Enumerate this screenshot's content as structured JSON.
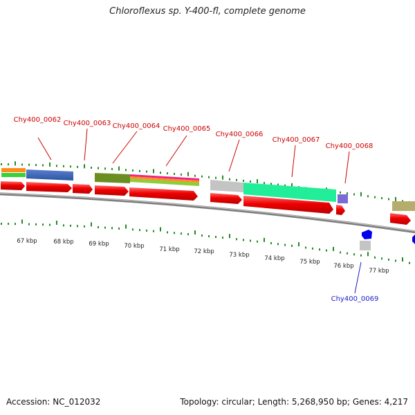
{
  "title": "Chloroflexus sp. Y-400-fl, complete genome",
  "accession": "Accession: NC_012032",
  "summary": "Topology: circular; Length: 5,268,950 bp; Genes: 4,217",
  "colors": {
    "backbone": "#8a8a8a",
    "tick": "#1f8a1f",
    "gene_forward": "#ee0000",
    "label_forward": "#cc0000",
    "label_reverse": "#1a1acc",
    "gene_reverse": "#0000ee"
  },
  "chart_data": {
    "type": "genome-map",
    "axis_unit": "kbp",
    "tick_labels": [
      "67 kbp",
      "68 kbp",
      "69 kbp",
      "70 kbp",
      "71 kbp",
      "72 kbp",
      "73 kbp",
      "74 kbp",
      "75 kbp",
      "76 kbp",
      "77 kbp"
    ],
    "gene_labels": [
      {
        "name": "Chy400_0062",
        "strand": "forward"
      },
      {
        "name": "Chy400_0063",
        "strand": "forward"
      },
      {
        "name": "Chy400_0064",
        "strand": "forward"
      },
      {
        "name": "Chy400_0065",
        "strand": "forward"
      },
      {
        "name": "Chy400_0066",
        "strand": "forward"
      },
      {
        "name": "Chy400_0067",
        "strand": "forward"
      },
      {
        "name": "Chy400_0068",
        "strand": "forward"
      },
      {
        "name": "Chy400_0069",
        "strand": "reverse"
      }
    ]
  }
}
